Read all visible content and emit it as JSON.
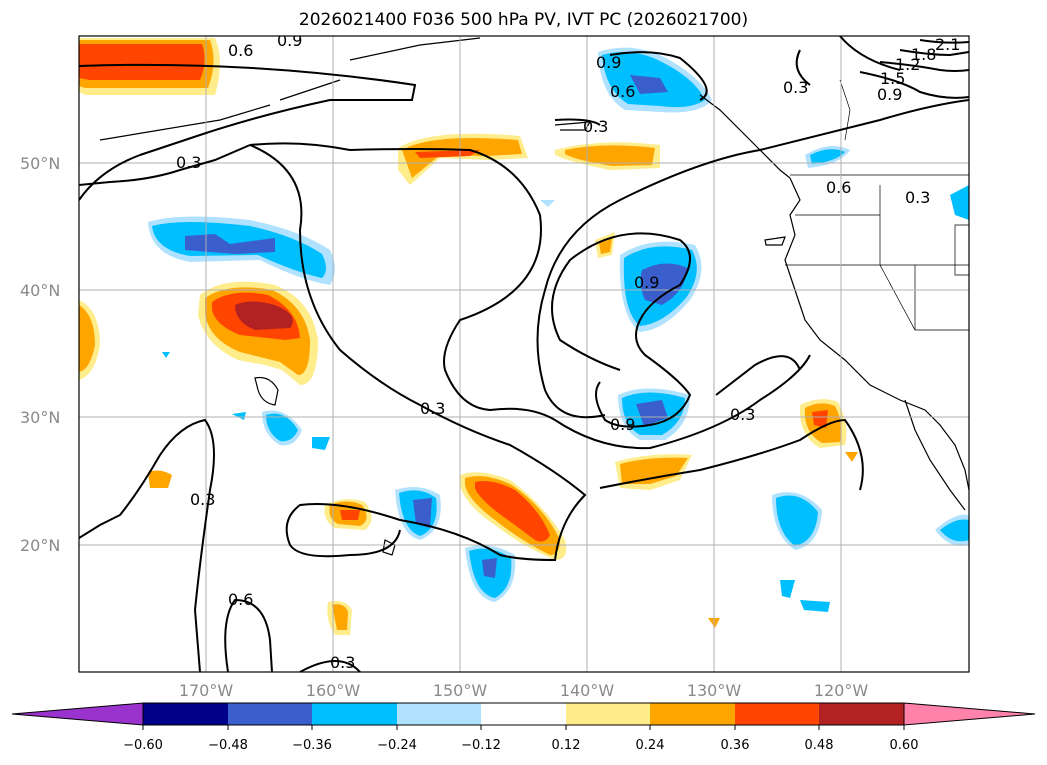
{
  "title": "2026021400 F036 500 hPa PV, IVT PC (2026021700)",
  "map": {
    "longitude_labels": [
      "170°W",
      "160°W",
      "150°W",
      "140°W",
      "130°W",
      "120°W"
    ],
    "latitude_labels": [
      "50°N",
      "40°N",
      "30°N",
      "20°N"
    ],
    "contour_labels": [
      "0.3",
      "0.6",
      "0.9",
      "1.2",
      "1.5",
      "1.8",
      "2.1"
    ],
    "label_color": "#8a8a8a"
  },
  "colorbar": {
    "tick_labels": [
      "−0.60",
      "−0.48",
      "−0.36",
      "−0.24",
      "−0.12",
      "0.12",
      "0.24",
      "0.36",
      "0.48",
      "0.60"
    ],
    "colors": [
      "#9a32cd",
      "#00008b",
      "#3a5fcd",
      "#00bfff",
      "#b0e2ff",
      "#ffffff",
      "#ffec8b",
      "#ffa500",
      "#ff4500",
      "#b22222",
      "#ff82ab"
    ]
  }
}
